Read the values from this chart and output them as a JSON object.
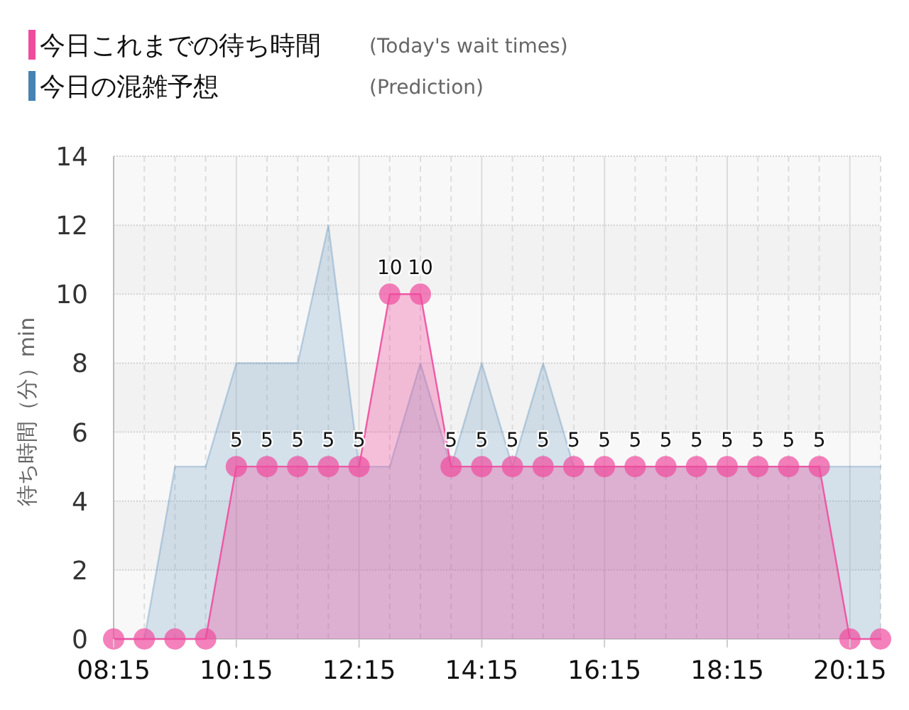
{
  "chart_data": {
    "type": "area",
    "ylabel": "待ち時間（分）min",
    "annotations": [
      "(Today's wait times)",
      "(Prediction)"
    ],
    "x": [
      8.25,
      8.75,
      9.25,
      9.75,
      10.25,
      10.75,
      11.25,
      11.75,
      12.25,
      12.75,
      13.25,
      13.75,
      14.25,
      14.75,
      15.25,
      15.75,
      16.25,
      16.75,
      17.25,
      17.75,
      18.25,
      18.75,
      19.25,
      19.75,
      20.25,
      20.75
    ],
    "series": [
      {
        "name": "今日の混雑予想",
        "color": "#4682b4",
        "marker": "none",
        "values": [
          0,
          0,
          5,
          5,
          8,
          8,
          8,
          12,
          5,
          5,
          8,
          5,
          8,
          5,
          8,
          5,
          5,
          5,
          5,
          5,
          5,
          5,
          5,
          5,
          5,
          5
        ]
      },
      {
        "name": "今日これまでの待ち時間",
        "color": "#ef4c9e",
        "marker": "circle",
        "values": [
          0,
          0,
          0,
          0,
          5,
          5,
          5,
          5,
          5,
          10,
          10,
          5,
          5,
          5,
          5,
          5,
          5,
          5,
          5,
          5,
          5,
          5,
          5,
          5,
          0,
          0
        ],
        "value_labels": [
          null,
          null,
          null,
          null,
          "5",
          "5",
          "5",
          "5",
          "5",
          "10",
          "10",
          "5",
          "5",
          "5",
          "5",
          "5",
          "5",
          "5",
          "5",
          "5",
          "5",
          "5",
          "5",
          "5",
          null,
          null
        ]
      }
    ],
    "xlim": [
      8.25,
      20.75
    ],
    "xticks": [
      {
        "value": 8.25,
        "label": "08:15"
      },
      {
        "value": 8.75,
        "label": null
      },
      {
        "value": 9.25,
        "label": null
      },
      {
        "value": 9.75,
        "label": null
      },
      {
        "value": 10.25,
        "label": "10:15"
      },
      {
        "value": 10.75,
        "label": null
      },
      {
        "value": 11.25,
        "label": null
      },
      {
        "value": 11.75,
        "label": null
      },
      {
        "value": 12.25,
        "label": "12:15"
      },
      {
        "value": 12.75,
        "label": null
      },
      {
        "value": 13.25,
        "label": null
      },
      {
        "value": 13.75,
        "label": null
      },
      {
        "value": 14.25,
        "label": "14:15"
      },
      {
        "value": 14.75,
        "label": null
      },
      {
        "value": 15.25,
        "label": null
      },
      {
        "value": 15.75,
        "label": null
      },
      {
        "value": 16.25,
        "label": "16:15"
      },
      {
        "value": 16.75,
        "label": null
      },
      {
        "value": 17.25,
        "label": null
      },
      {
        "value": 17.75,
        "label": null
      },
      {
        "value": 18.25,
        "label": "18:15"
      },
      {
        "value": 18.75,
        "label": null
      },
      {
        "value": 19.25,
        "label": null
      },
      {
        "value": 19.75,
        "label": null
      },
      {
        "value": 20.25,
        "label": "20:15"
      },
      {
        "value": 20.75,
        "label": null
      }
    ],
    "ylim": [
      0,
      14
    ],
    "yticks": [
      0,
      2,
      4,
      6,
      8,
      10,
      12,
      14
    ],
    "grid": true,
    "legend": "top left"
  }
}
